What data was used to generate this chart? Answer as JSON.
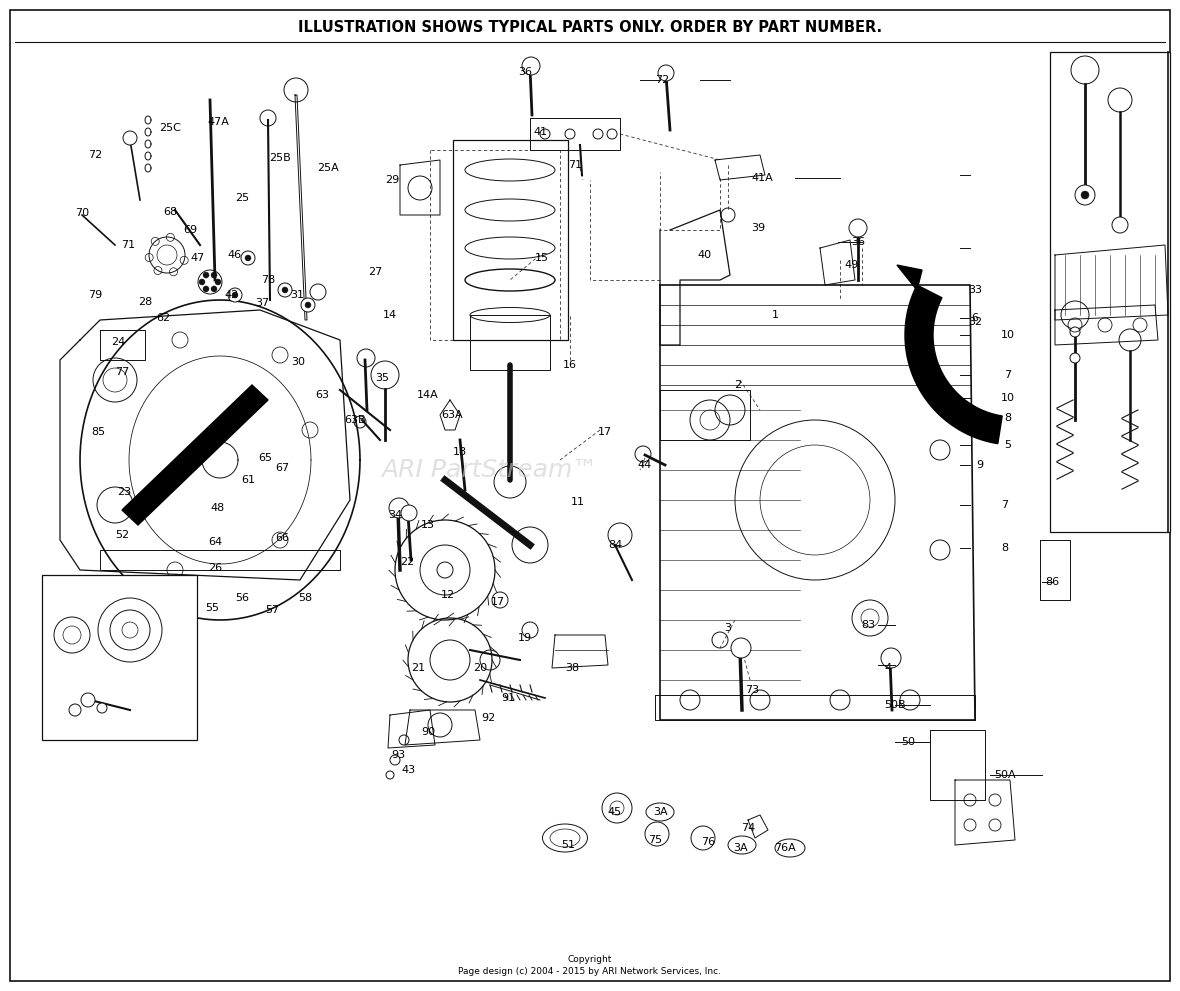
{
  "title": "ILLUSTRATION SHOWS TYPICAL PARTS ONLY. ORDER BY PART NUMBER.",
  "copyright_line1": "Copyright",
  "copyright_line2": "Page design (c) 2004 - 2015 by ARI Network Services, Inc.",
  "watermark": "ARI PartStream™",
  "bg": "#f5f5f0",
  "fg": "#1a1a1a",
  "title_fontsize": 10.5,
  "copyright_fontsize": 6.5,
  "watermark_fontsize": 18,
  "watermark_color": "#cccccc",
  "fig_w": 11.8,
  "fig_h": 9.91,
  "dpi": 100
}
